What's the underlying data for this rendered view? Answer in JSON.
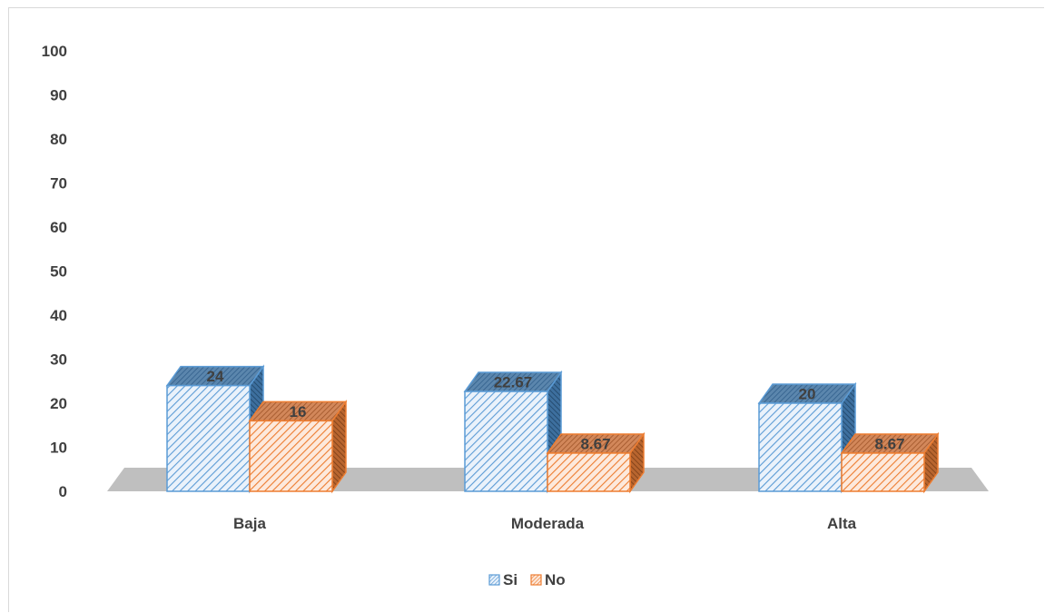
{
  "chart_data": {
    "type": "bar",
    "style": "3d-clustered-column",
    "categories": [
      "Baja",
      "Moderada",
      "Alta"
    ],
    "series": [
      {
        "name": "Si",
        "values": [
          24,
          22.67,
          20
        ],
        "color": "#5b9bd5",
        "pattern": "diagonal-hatch"
      },
      {
        "name": "No",
        "values": [
          16,
          8.67,
          8.67
        ],
        "color": "#ed7d31",
        "pattern": "diagonal-hatch"
      }
    ],
    "data_labels": [
      [
        "24",
        "22.67",
        "20"
      ],
      [
        "16",
        "8.67",
        "8.67"
      ]
    ],
    "y_ticks": [
      "0",
      "10",
      "20",
      "30",
      "40",
      "50",
      "60",
      "70",
      "80",
      "90",
      "100"
    ],
    "ylim": [
      0,
      100
    ],
    "grid": false,
    "legend": "bottom",
    "floor_color": "#bfbfbf"
  }
}
